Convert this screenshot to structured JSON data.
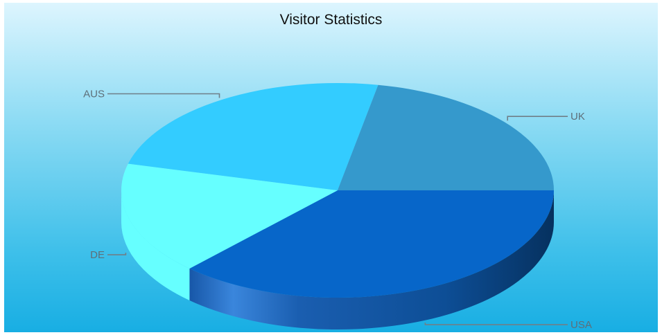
{
  "chart_data": {
    "type": "pie",
    "title": "Visitor Statistics",
    "style": "3d",
    "slices": [
      {
        "label": "USA",
        "value": 37,
        "color": "#0766c9"
      },
      {
        "label": "DE",
        "value": 17,
        "color": "#66ffff"
      },
      {
        "label": "AUS",
        "value": 24,
        "color": "#33ccff"
      },
      {
        "label": "UK",
        "value": 22,
        "color": "#3599cc"
      }
    ]
  }
}
